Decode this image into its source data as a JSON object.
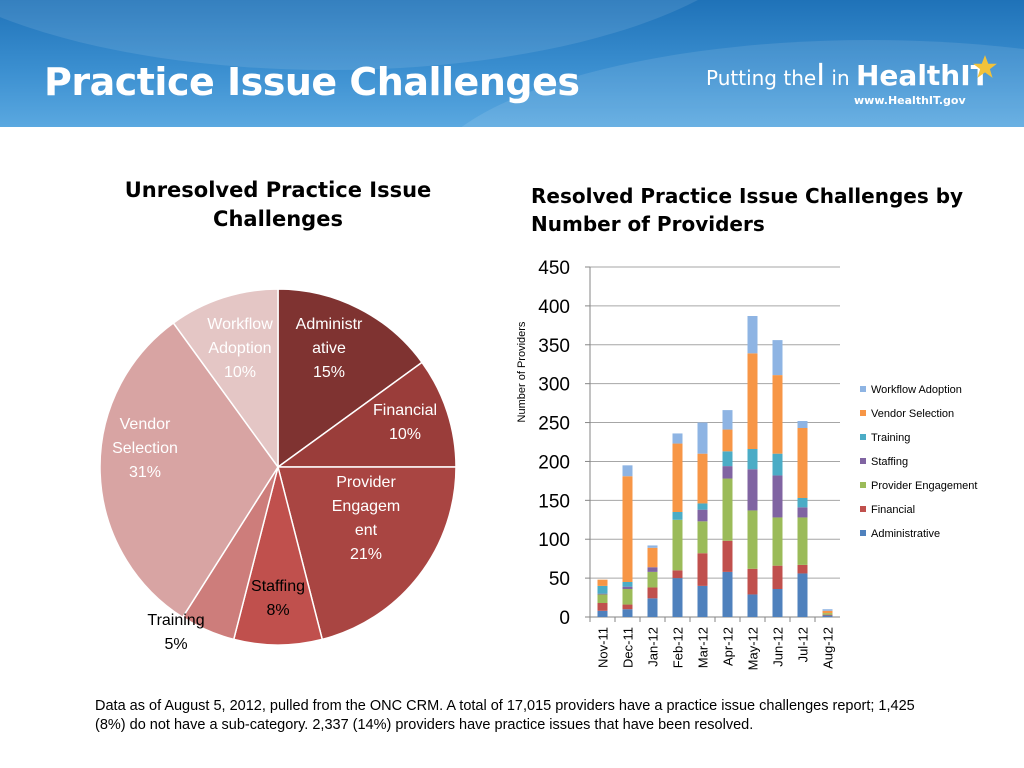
{
  "header": {
    "title": "Practice Issue Challenges",
    "logo_text_1": "Putting the",
    "logo_text_2": "I",
    "logo_text_3": " in ",
    "logo_text_4": "HealthIT",
    "logo_url": "www.HealthIT.gov",
    "bg_color": "#2a7fc4"
  },
  "footnote": "Data as of August 5, 2012, pulled from the ONC CRM. A total of 17,015 providers have a practice issue challenges report; 1,425 (8%) do not have a sub-category.  2,337 (14%) providers have practice issues that have been resolved.",
  "chart_data": [
    {
      "type": "pie",
      "title": "Unresolved Practice Issue Challenges",
      "slices": [
        {
          "label": "Administrative",
          "value": 15,
          "label_lines": [
            "Administr",
            "ative",
            "15%"
          ],
          "color": "#7f3331",
          "text_color": "#ffffff"
        },
        {
          "label": "Financial",
          "value": 10,
          "label_lines": [
            "Financial",
            "10%"
          ],
          "color": "#9a3d3a",
          "text_color": "#ffffff"
        },
        {
          "label": "Provider Engagement",
          "value": 21,
          "label_lines": [
            "Provider",
            "Engagem",
            "ent",
            "21%"
          ],
          "color": "#a94542",
          "text_color": "#ffffff"
        },
        {
          "label": "Staffing",
          "value": 8,
          "label_lines": [
            "Staffing",
            "8%"
          ],
          "color": "#c0504d",
          "text_color": "#000000"
        },
        {
          "label": "Training",
          "value": 5,
          "label_lines": [
            "Training",
            "5%"
          ],
          "color": "#cd7d7b",
          "text_color": "#000000"
        },
        {
          "label": "Vendor Selection",
          "value": 31,
          "label_lines": [
            "Vendor",
            "Selection",
            "31%"
          ],
          "color": "#d8a4a3",
          "text_color": "#ffffff"
        },
        {
          "label": "Workflow Adoption",
          "value": 10,
          "label_lines": [
            "Workflow",
            "Adoption",
            "10%"
          ],
          "color": "#e4c6c5",
          "text_color": "#ffffff"
        }
      ]
    },
    {
      "type": "bar",
      "stacked": true,
      "title": "Resolved Practice Issue Challenges by Number of Providers",
      "ylabel": "Number of Providers",
      "ylim": [
        0,
        450
      ],
      "yticks": [
        0,
        50,
        100,
        150,
        200,
        250,
        300,
        350,
        400,
        450
      ],
      "grid": true,
      "legend_position": "right",
      "categories": [
        "Nov-11",
        "Dec-11",
        "Jan-12",
        "Feb-12",
        "Mar-12",
        "Apr-12",
        "May-12",
        "Jun-12",
        "Jul-12",
        "Aug-12"
      ],
      "series": [
        {
          "name": "Administrative",
          "color": "#4f81bd",
          "values": [
            8,
            10,
            24,
            50,
            40,
            58,
            29,
            36,
            56,
            2
          ]
        },
        {
          "name": "Financial",
          "color": "#c0504d",
          "values": [
            10,
            6,
            14,
            10,
            42,
            40,
            33,
            30,
            11,
            1
          ]
        },
        {
          "name": "Provider Engagement",
          "color": "#9bbb59",
          "values": [
            11,
            20,
            20,
            65,
            41,
            80,
            75,
            62,
            61,
            2
          ]
        },
        {
          "name": "Staffing",
          "color": "#8064a2",
          "values": [
            1,
            3,
            6,
            0,
            15,
            16,
            53,
            54,
            13,
            0
          ]
        },
        {
          "name": "Training",
          "color": "#4bacc6",
          "values": [
            10,
            6,
            0,
            10,
            8,
            19,
            26,
            28,
            12,
            0
          ]
        },
        {
          "name": "Vendor Selection",
          "color": "#f79646",
          "values": [
            8,
            136,
            25,
            88,
            64,
            28,
            123,
            101,
            90,
            3
          ]
        },
        {
          "name": "Workflow Adoption",
          "color": "#8eb4e3",
          "values": [
            0,
            14,
            3,
            13,
            40,
            25,
            48,
            45,
            9,
            2
          ]
        }
      ]
    }
  ]
}
